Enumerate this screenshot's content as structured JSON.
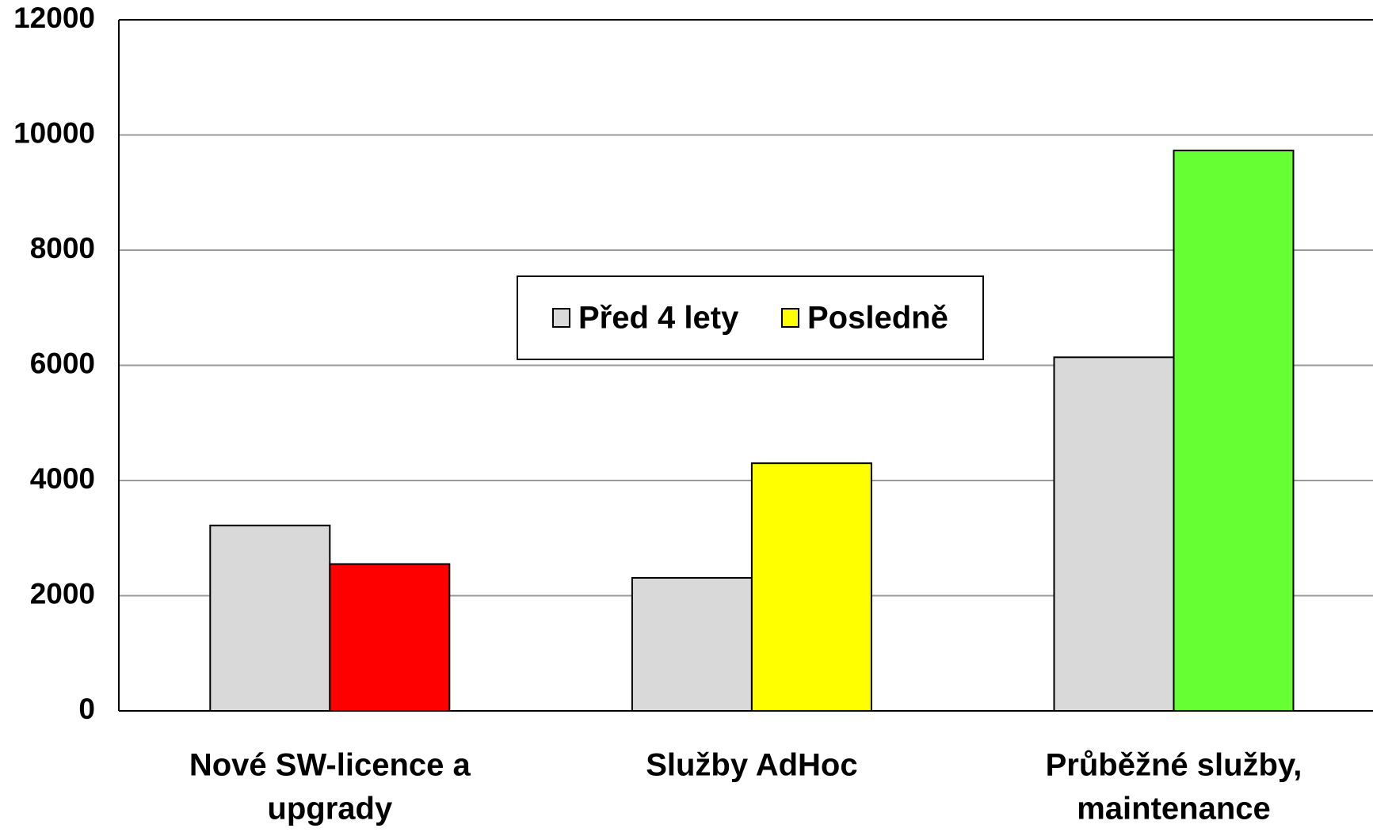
{
  "chart_data": {
    "type": "bar",
    "categories": [
      [
        "Nové SW-licence a",
        "upgrady"
      ],
      [
        "Služby AdHoc"
      ],
      [
        "Průběžné služby,",
        "maintenance"
      ]
    ],
    "series": [
      {
        "name": "Před 4 lety",
        "color": "#d9d9d9",
        "values": [
          3220,
          2310,
          6140
        ]
      },
      {
        "name": "Posledně",
        "color": "#ffff00",
        "colors": [
          "#ff0000",
          "#ffff00",
          "#66ff33"
        ],
        "values": [
          2550,
          4300,
          9730
        ]
      }
    ],
    "ylim": [
      0,
      12000
    ],
    "yticks": [
      0,
      2000,
      4000,
      6000,
      8000,
      10000,
      12000
    ],
    "grid": true,
    "legend": "center"
  }
}
